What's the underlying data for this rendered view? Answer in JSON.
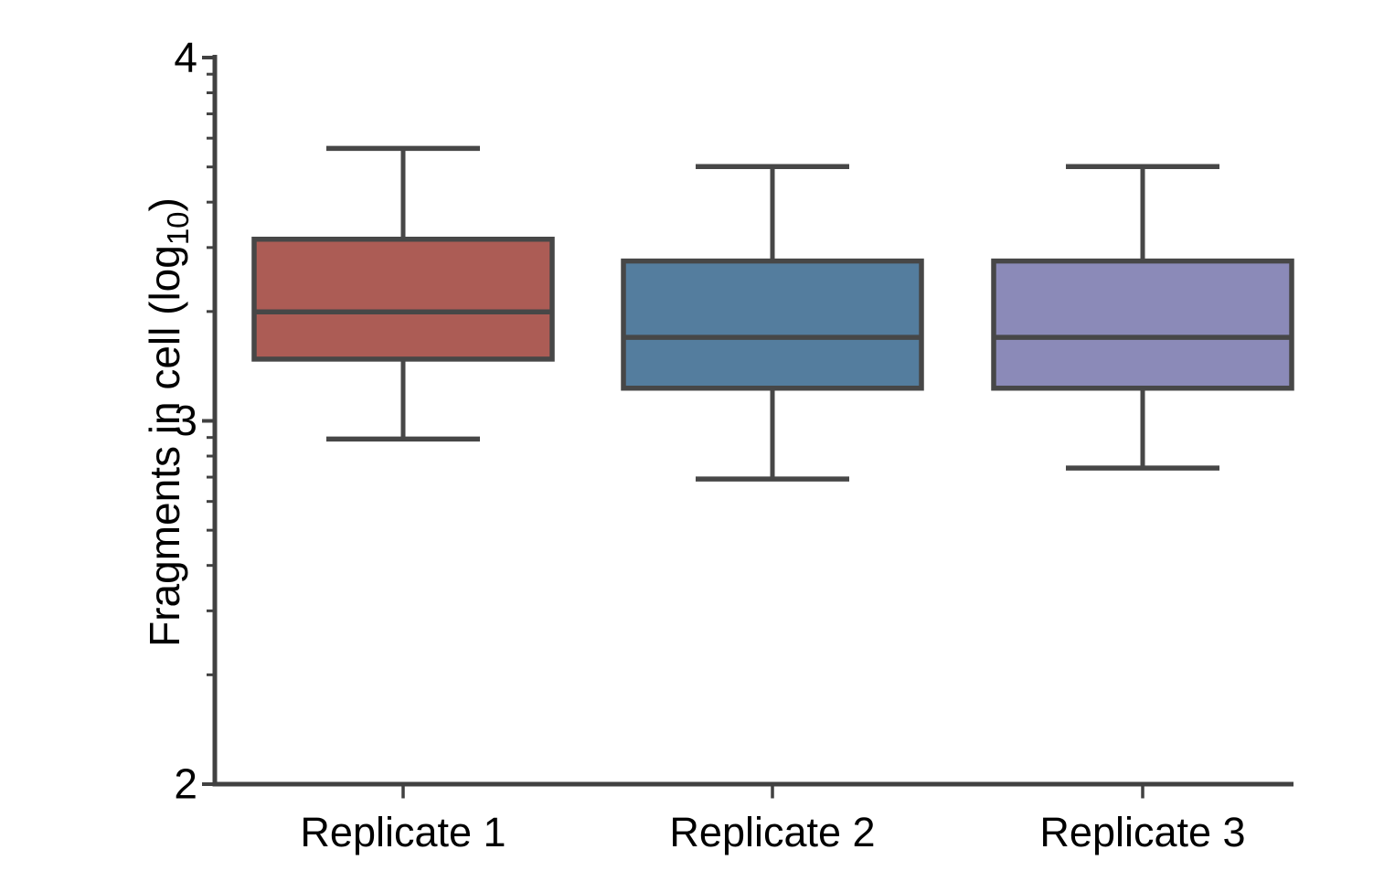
{
  "figure": {
    "background": "#FFFFFF",
    "description": "Box plot of fragments per cell (log10) for three replicates"
  },
  "chart_data": {
    "type": "boxplot",
    "title": "",
    "xlabel": "",
    "ylabel": "Fragments in cell (log10)",
    "ylabel_rich": {
      "pre": "Fragments in cell (log",
      "sub": "10",
      "post": ")"
    },
    "y_scale": "log10-spaced axis with decade major ticks and logarithmic minor ticks",
    "ylim": [
      2,
      4
    ],
    "y_major_ticks": [
      "2",
      "3",
      "4"
    ],
    "categories": [
      "Replicate 1",
      "Replicate 2",
      "Replicate 3"
    ],
    "series": [
      {
        "name": "Replicate 1",
        "fill": "#AC5C55",
        "whisker_low": 2.95,
        "q1": 3.17,
        "median": 3.3,
        "q3": 3.5,
        "whisker_high": 3.75
      },
      {
        "name": "Replicate 2",
        "fill": "#547D9E",
        "whisker_low": 2.84,
        "q1": 3.09,
        "median": 3.23,
        "q3": 3.44,
        "whisker_high": 3.7
      },
      {
        "name": "Replicate 3",
        "fill": "#8B8AB8",
        "whisker_low": 2.87,
        "q1": 3.09,
        "median": 3.23,
        "q3": 3.44,
        "whisker_high": 3.7
      }
    ],
    "legend": "none",
    "grid": "off",
    "colors": {
      "box_stroke": "#474747",
      "axis_stroke": "#414141",
      "text": "#000000",
      "background": "#FFFFFF"
    }
  }
}
